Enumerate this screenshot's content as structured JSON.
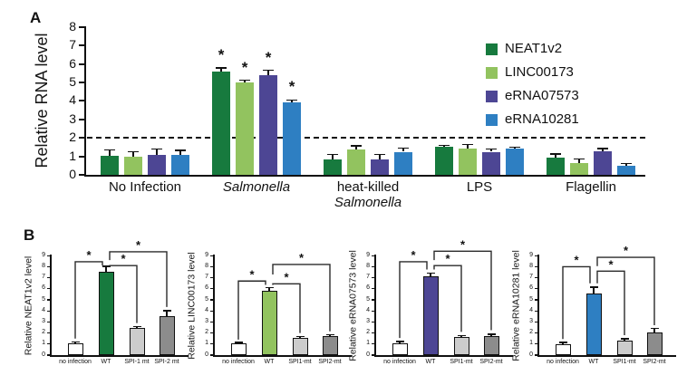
{
  "figure": {
    "background": "#ffffff",
    "panelA": {
      "label": "A"
    },
    "panelB": {
      "label": "B"
    }
  },
  "colors": {
    "neat1v2": "#177a3e",
    "linc00173": "#92c35f",
    "erna07573": "#4d4694",
    "erna10281": "#2e7fc2",
    "bar_white": "#ffffff",
    "bar_gray_light": "#cccccc",
    "bar_gray_dark": "#8c8c8c",
    "axis": "#111111"
  },
  "legend": {
    "position": "right",
    "items": [
      {
        "label": "NEAT1v2",
        "color": "#177a3e"
      },
      {
        "label": "LINC00173",
        "color": "#92c35f"
      },
      {
        "label": "eRNA07573",
        "color": "#4d4694"
      },
      {
        "label": "eRNA10281",
        "color": "#2e7fc2"
      }
    ]
  },
  "chart_data": [
    {
      "id": "A",
      "type": "bar",
      "title": "",
      "xlabel": "",
      "ylabel": "Relative RNA level",
      "ylim": [
        0,
        8
      ],
      "ytick_step": 1,
      "grid": false,
      "dashed_line_y": 2,
      "star_group_index": 1,
      "star_label": "*",
      "categories": [
        "No Infection",
        "Salmonella",
        "heat-killed Salmonella",
        "LPS",
        "Flagellin"
      ],
      "category_lines": [
        [
          {
            "text": "No Infection",
            "italic": false
          }
        ],
        [
          {
            "text": "Salmonella",
            "italic": true
          }
        ],
        [
          {
            "text": "heat-killed",
            "italic": false
          },
          {
            "text": "Salmonella",
            "italic": true
          }
        ],
        [
          {
            "text": "LPS",
            "italic": false
          }
        ],
        [
          {
            "text": "Flagellin",
            "italic": false
          }
        ]
      ],
      "series": [
        {
          "name": "NEAT1v2",
          "color": "#177a3e",
          "values": [
            1.05,
            5.6,
            0.85,
            1.5,
            0.95
          ],
          "errors": [
            0.3,
            0.18,
            0.25,
            0.1,
            0.18
          ]
        },
        {
          "name": "LINC00173",
          "color": "#92c35f",
          "values": [
            1.0,
            5.0,
            1.35,
            1.42,
            0.65
          ],
          "errors": [
            0.25,
            0.12,
            0.22,
            0.22,
            0.22
          ]
        },
        {
          "name": "eRNA07573",
          "color": "#4d4694",
          "values": [
            1.1,
            5.4,
            0.85,
            1.25,
            1.28
          ],
          "errors": [
            0.3,
            0.25,
            0.25,
            0.15,
            0.15
          ]
        },
        {
          "name": "eRNA10281",
          "color": "#2e7fc2",
          "values": [
            1.1,
            3.9,
            1.25,
            1.4,
            0.5
          ],
          "errors": [
            0.22,
            0.15,
            0.2,
            0.1,
            0.12
          ]
        }
      ]
    },
    {
      "id": "B1",
      "type": "bar",
      "ylabel": "Relative NEAT1v2 level",
      "ylim": [
        0,
        9
      ],
      "grid": false,
      "categories": [
        "no infection",
        "WT",
        "SPI-1 mt",
        "SPI-2 mt"
      ],
      "values": [
        1.05,
        7.55,
        2.45,
        3.55
      ],
      "errors": [
        0.15,
        0.5,
        0.15,
        0.45
      ],
      "bar_colors": [
        "#ffffff",
        "#177a3e",
        "#cccccc",
        "#8c8c8c"
      ],
      "comparisons": [
        {
          "a": 0,
          "b": 1,
          "level": 8.45,
          "a_drop": 1.5,
          "b_drop": 8.1,
          "b_off": -4,
          "label": "*"
        },
        {
          "a": 1,
          "b": 2,
          "level": 8.1,
          "a_drop": 8.0,
          "b_drop": 2.9,
          "a_off": 4,
          "label": "*"
        },
        {
          "a": 1,
          "b": 3,
          "level": 9.35,
          "a_drop": 8.6,
          "b_drop": 4.35,
          "a_off": 4,
          "label": "*"
        }
      ]
    },
    {
      "id": "B2",
      "type": "bar",
      "ylabel": "Relative LINC00173 level",
      "ylim": [
        0,
        9
      ],
      "grid": false,
      "categories": [
        "no infection",
        "WT",
        "SPI1-mt",
        "SPI2-mt"
      ],
      "values": [
        1.05,
        5.8,
        1.55,
        1.7
      ],
      "errors": [
        0.1,
        0.3,
        0.12,
        0.15
      ],
      "bar_colors": [
        "#ffffff",
        "#92c35f",
        "#cccccc",
        "#8c8c8c"
      ],
      "comparisons": [
        {
          "a": 0,
          "b": 1,
          "level": 6.7,
          "a_drop": 1.4,
          "b_drop": 6.35,
          "b_off": -4,
          "label": "*"
        },
        {
          "a": 1,
          "b": 2,
          "level": 6.45,
          "a_drop": 6.35,
          "b_drop": 2.0,
          "a_off": 4,
          "label": "*"
        },
        {
          "a": 1,
          "b": 3,
          "level": 8.2,
          "a_drop": 7.3,
          "b_drop": 2.15,
          "a_off": 4,
          "label": "*"
        }
      ]
    },
    {
      "id": "B3",
      "type": "bar",
      "ylabel": "Relative eRNA07573 level",
      "ylim": [
        0,
        9
      ],
      "grid": false,
      "categories": [
        "no infection",
        "WT",
        "SPI1-mt",
        "SPI2-mt"
      ],
      "values": [
        1.1,
        7.1,
        1.65,
        1.7
      ],
      "errors": [
        0.15,
        0.3,
        0.12,
        0.2
      ],
      "bar_colors": [
        "#ffffff",
        "#4d4694",
        "#cccccc",
        "#8c8c8c"
      ],
      "comparisons": [
        {
          "a": 0,
          "b": 1,
          "level": 8.45,
          "a_drop": 1.55,
          "b_drop": 7.75,
          "b_off": -4,
          "label": "*"
        },
        {
          "a": 1,
          "b": 2,
          "level": 8.1,
          "a_drop": 7.75,
          "b_drop": 2.1,
          "a_off": 4,
          "label": "*"
        },
        {
          "a": 1,
          "b": 3,
          "level": 9.4,
          "a_drop": 8.6,
          "b_drop": 2.25,
          "a_off": 4,
          "label": "*"
        }
      ]
    },
    {
      "id": "B4",
      "type": "bar",
      "ylabel": "Relative eRNA10281 level",
      "ylim": [
        0,
        9
      ],
      "grid": false,
      "categories": [
        "no infection",
        "WT",
        "SPI1-mt",
        "SPI2-mt"
      ],
      "values": [
        1.0,
        5.6,
        1.35,
        2.05
      ],
      "errors": [
        0.15,
        0.55,
        0.12,
        0.35
      ],
      "bar_colors": [
        "#ffffff",
        "#2e7fc2",
        "#cccccc",
        "#8c8c8c"
      ],
      "comparisons": [
        {
          "a": 0,
          "b": 1,
          "level": 8.0,
          "a_drop": 1.45,
          "b_drop": 6.5,
          "b_off": -4,
          "label": "*"
        },
        {
          "a": 1,
          "b": 2,
          "level": 7.6,
          "a_drop": 6.5,
          "b_drop": 1.8,
          "a_off": 4,
          "label": "*"
        },
        {
          "a": 1,
          "b": 3,
          "level": 8.85,
          "a_drop": 8.05,
          "b_drop": 2.7,
          "a_off": 4,
          "label": "*"
        }
      ]
    }
  ]
}
